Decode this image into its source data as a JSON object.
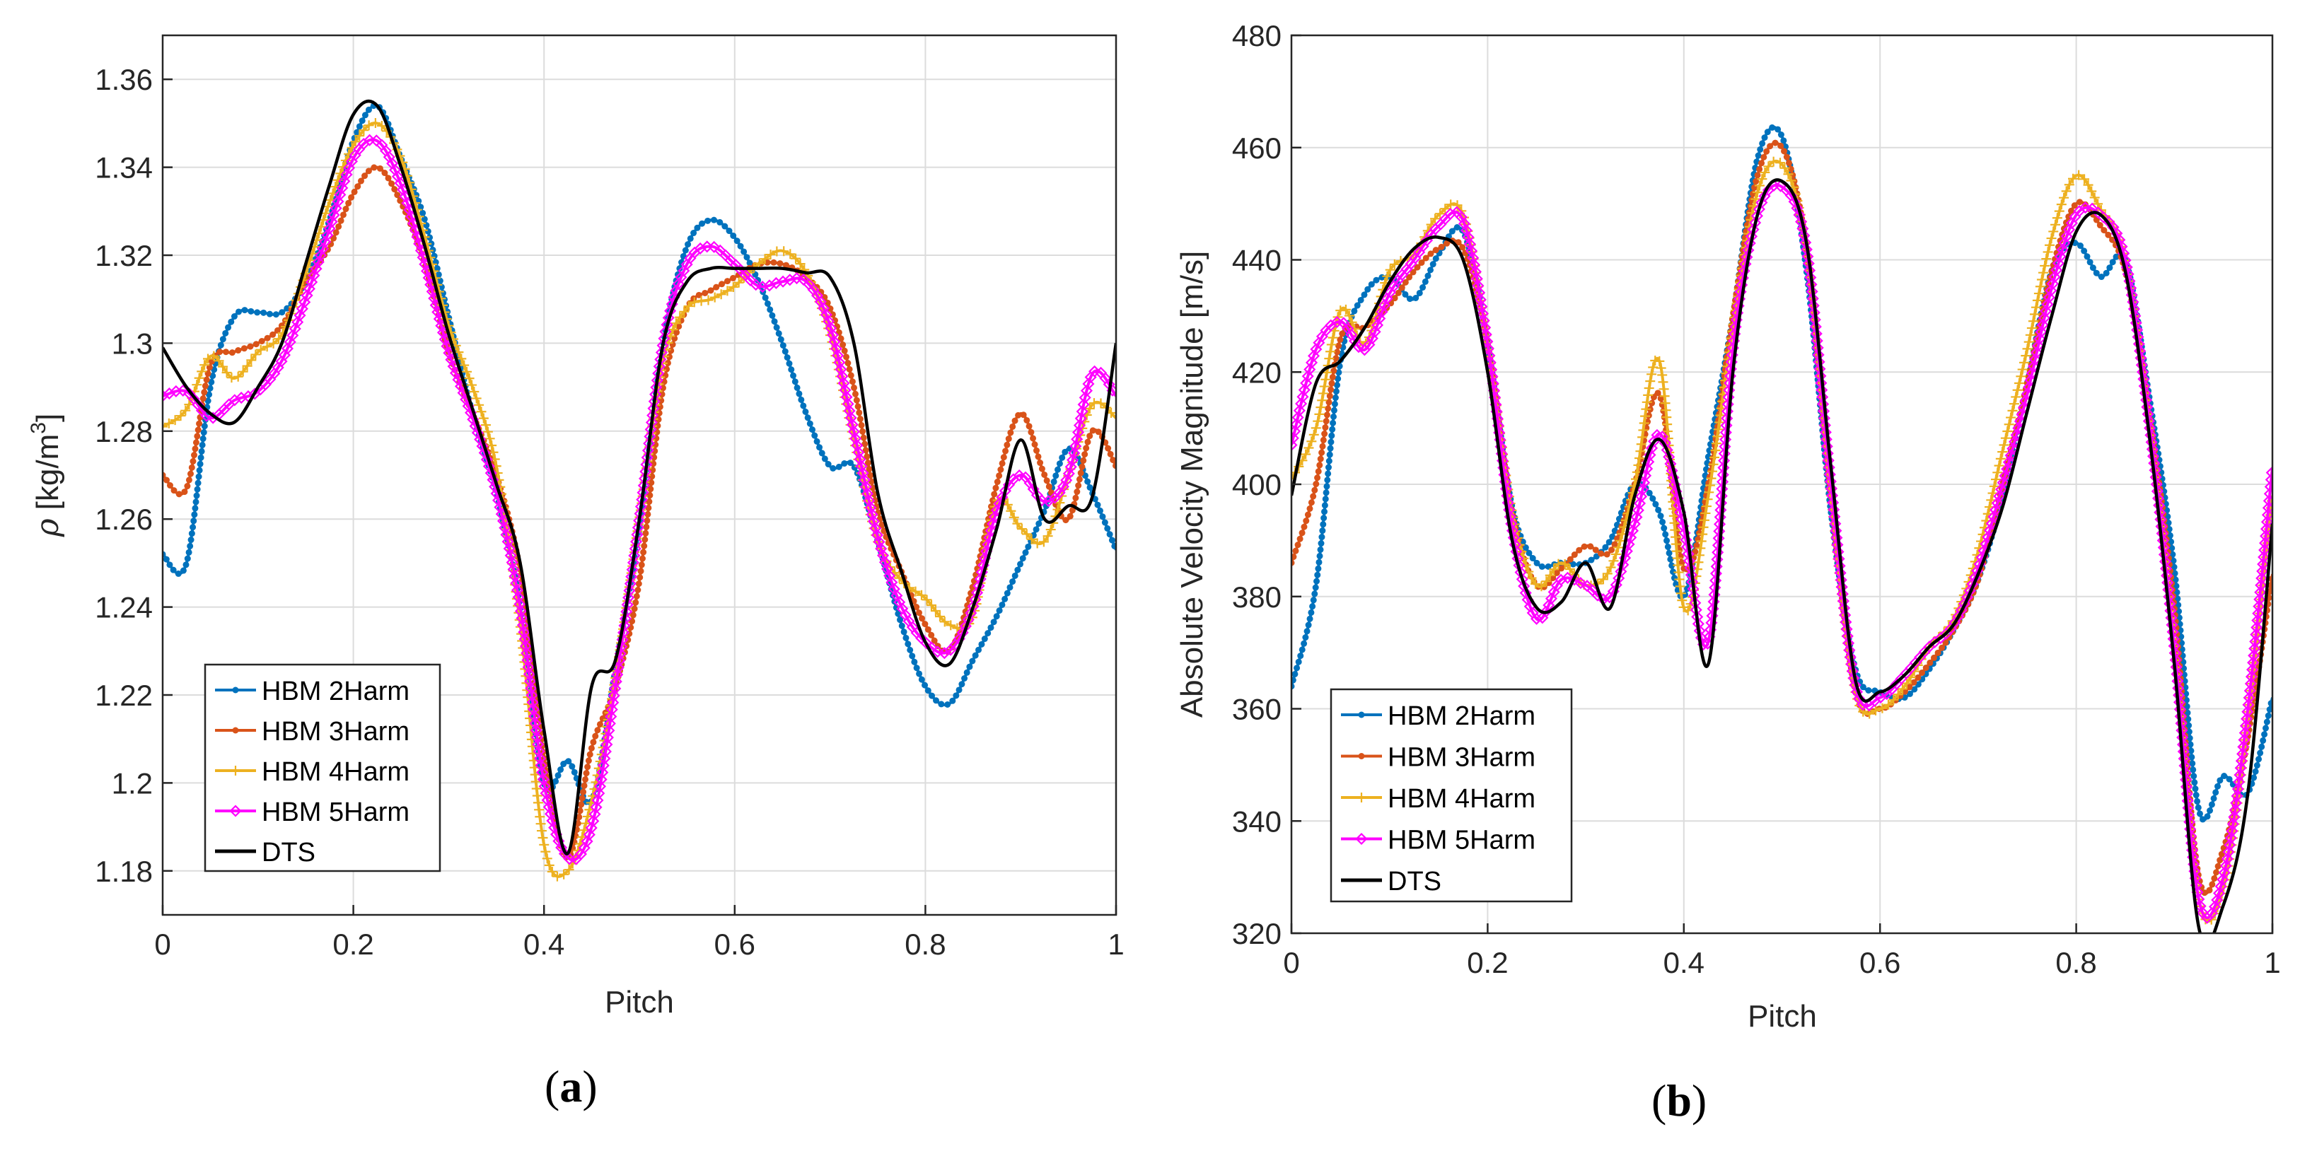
{
  "figure": {
    "caption_a": "a",
    "caption_b": "b"
  },
  "colors": {
    "HBM 2Harm": "#0072BD",
    "HBM 3Harm": "#D95319",
    "HBM 4Harm": "#EDB120",
    "HBM 5Harm": "#FF00FF",
    "DTS": "#000000"
  },
  "chart_data": [
    {
      "type": "line",
      "panel": "a",
      "xlabel": "Pitch",
      "ylabel_symbol": "ρ",
      "ylabel_unit_prefix": "[kg/m",
      "ylabel_unit_exp": "3",
      "ylabel_unit_suffix": "]",
      "xlim": [
        0,
        1
      ],
      "ylim": [
        1.17,
        1.37
      ],
      "xticks": [
        0,
        0.2,
        0.4,
        0.6,
        0.8,
        1
      ],
      "xtick_labels": [
        "0",
        "0.2",
        "0.4",
        "0.6",
        "0.8",
        "1"
      ],
      "yticks": [
        1.18,
        1.2,
        1.22,
        1.24,
        1.26,
        1.28,
        1.3,
        1.32,
        1.34,
        1.36
      ],
      "ytick_labels": [
        "1.18",
        "1.2",
        "1.22",
        "1.24",
        "1.26",
        "1.28",
        "1.3",
        "1.32",
        "1.34",
        "1.36"
      ],
      "grid": true,
      "legend_position": "bottom-left",
      "x": [
        0,
        0.025,
        0.05,
        0.075,
        0.1,
        0.125,
        0.15,
        0.175,
        0.2,
        0.225,
        0.25,
        0.275,
        0.3,
        0.325,
        0.35,
        0.375,
        0.4,
        0.425,
        0.45,
        0.475,
        0.5,
        0.525,
        0.55,
        0.575,
        0.6,
        0.625,
        0.65,
        0.675,
        0.7,
        0.725,
        0.75,
        0.775,
        0.8,
        0.825,
        0.85,
        0.875,
        0.9,
        0.925,
        0.95,
        0.975,
        1
      ],
      "series": [
        {
          "name": "HBM 2Harm",
          "values": [
            1.252,
            1.25,
            1.29,
            1.306,
            1.307,
            1.307,
            1.314,
            1.328,
            1.346,
            1.354,
            1.342,
            1.328,
            1.306,
            1.284,
            1.266,
            1.24,
            1.2,
            1.205,
            1.196,
            1.226,
            1.258,
            1.3,
            1.322,
            1.328,
            1.324,
            1.314,
            1.3,
            1.284,
            1.272,
            1.272,
            1.255,
            1.236,
            1.222,
            1.218,
            1.228,
            1.238,
            1.25,
            1.262,
            1.276,
            1.266,
            1.253
          ]
        },
        {
          "name": "HBM 3Harm",
          "values": [
            1.27,
            1.267,
            1.295,
            1.298,
            1.3,
            1.304,
            1.314,
            1.322,
            1.334,
            1.34,
            1.332,
            1.318,
            1.298,
            1.284,
            1.27,
            1.248,
            1.206,
            1.183,
            1.208,
            1.222,
            1.246,
            1.29,
            1.308,
            1.312,
            1.315,
            1.318,
            1.318,
            1.315,
            1.308,
            1.29,
            1.262,
            1.248,
            1.236,
            1.23,
            1.245,
            1.268,
            1.284,
            1.27,
            1.26,
            1.28,
            1.272
          ]
        },
        {
          "name": "HBM 4Harm",
          "values": [
            1.281,
            1.285,
            1.297,
            1.292,
            1.298,
            1.302,
            1.316,
            1.332,
            1.345,
            1.35,
            1.342,
            1.324,
            1.304,
            1.29,
            1.272,
            1.236,
            1.186,
            1.18,
            1.196,
            1.224,
            1.26,
            1.296,
            1.308,
            1.31,
            1.313,
            1.318,
            1.321,
            1.316,
            1.302,
            1.278,
            1.255,
            1.246,
            1.242,
            1.236,
            1.238,
            1.264,
            1.258,
            1.255,
            1.27,
            1.286,
            1.283
          ]
        },
        {
          "name": "HBM 5Harm",
          "values": [
            1.288,
            1.289,
            1.283,
            1.287,
            1.289,
            1.296,
            1.31,
            1.326,
            1.342,
            1.346,
            1.336,
            1.318,
            1.298,
            1.283,
            1.266,
            1.24,
            1.2,
            1.183,
            1.19,
            1.222,
            1.26,
            1.3,
            1.318,
            1.322,
            1.318,
            1.313,
            1.314,
            1.314,
            1.304,
            1.28,
            1.256,
            1.24,
            1.232,
            1.23,
            1.24,
            1.262,
            1.27,
            1.264,
            1.27,
            1.293,
            1.288
          ]
        },
        {
          "name": "DTS",
          "values": [
            1.299,
            1.29,
            1.284,
            1.282,
            1.29,
            1.3,
            1.318,
            1.336,
            1.352,
            1.354,
            1.34,
            1.322,
            1.302,
            1.285,
            1.268,
            1.25,
            1.212,
            1.184,
            1.222,
            1.228,
            1.26,
            1.3,
            1.314,
            1.317,
            1.317,
            1.317,
            1.317,
            1.316,
            1.315,
            1.3,
            1.266,
            1.248,
            1.232,
            1.227,
            1.24,
            1.258,
            1.278,
            1.26,
            1.263,
            1.265,
            1.3
          ]
        }
      ]
    },
    {
      "type": "line",
      "panel": "b",
      "xlabel": "Pitch",
      "ylabel": "Absolute Velocity Magnitude [m/s]",
      "xlim": [
        0,
        1
      ],
      "ylim": [
        320,
        480
      ],
      "xticks": [
        0,
        0.2,
        0.4,
        0.6,
        0.8,
        1
      ],
      "xtick_labels": [
        "0",
        "0.2",
        "0.4",
        "0.6",
        "0.8",
        "1"
      ],
      "yticks": [
        320,
        340,
        360,
        380,
        400,
        420,
        440,
        460,
        480
      ],
      "ytick_labels": [
        "320",
        "340",
        "360",
        "380",
        "400",
        "420",
        "440",
        "460",
        "480"
      ],
      "grid": true,
      "legend_position": "bottom-left",
      "x": [
        0,
        0.025,
        0.05,
        0.075,
        0.1,
        0.125,
        0.15,
        0.175,
        0.2,
        0.225,
        0.25,
        0.275,
        0.3,
        0.325,
        0.35,
        0.375,
        0.4,
        0.425,
        0.45,
        0.475,
        0.5,
        0.525,
        0.55,
        0.575,
        0.6,
        0.625,
        0.65,
        0.675,
        0.7,
        0.725,
        0.75,
        0.775,
        0.8,
        0.825,
        0.85,
        0.875,
        0.9,
        0.925,
        0.95,
        0.975,
        1
      ],
      "series": [
        {
          "name": "HBM 2Harm",
          "values": [
            364,
            382,
            422,
            434,
            437,
            433,
            441,
            445,
            425,
            396,
            386,
            386,
            386,
            390,
            400,
            395,
            380,
            405,
            430,
            458,
            462,
            438,
            395,
            367,
            363,
            362,
            367,
            374,
            383,
            398,
            418,
            438,
            443,
            437,
            440,
            415,
            385,
            342,
            348,
            345,
            362
          ]
        },
        {
          "name": "HBM 3Harm",
          "values": [
            386,
            400,
            426,
            428,
            432,
            438,
            442,
            442,
            425,
            395,
            382,
            385,
            389,
            388,
            400,
            416,
            385,
            400,
            430,
            455,
            460,
            442,
            398,
            363,
            360,
            363,
            368,
            374,
            383,
            400,
            418,
            438,
            450,
            446,
            438,
            412,
            378,
            330,
            335,
            355,
            384
          ]
        },
        {
          "name": "HBM 4Harm",
          "values": [
            401,
            410,
            431,
            425,
            438,
            441,
            448,
            448,
            425,
            395,
            382,
            386,
            382,
            385,
            400,
            422,
            378,
            398,
            428,
            452,
            457,
            442,
            398,
            363,
            360,
            364,
            371,
            376,
            388,
            406,
            424,
            444,
            455,
            449,
            440,
            410,
            370,
            326,
            328,
            358,
            398
          ]
        },
        {
          "name": "HBM 5Harm",
          "values": [
            407,
            424,
            429,
            424,
            434,
            440,
            446,
            447,
            425,
            392,
            376,
            383,
            382,
            380,
            393,
            409,
            392,
            372,
            424,
            448,
            453,
            442,
            400,
            364,
            362,
            366,
            371,
            375,
            385,
            400,
            416,
            435,
            448,
            448,
            440,
            410,
            371,
            326,
            330,
            360,
            403
          ]
        },
        {
          "name": "DTS",
          "values": [
            398,
            418,
            422,
            428,
            436,
            442,
            444,
            440,
            420,
            390,
            378,
            379,
            386,
            378,
            398,
            408,
            395,
            368,
            420,
            448,
            454,
            443,
            403,
            365,
            363,
            366,
            371,
            375,
            384,
            396,
            413,
            430,
            445,
            448,
            438,
            408,
            368,
            321,
            325,
            345,
            393
          ]
        }
      ]
    }
  ]
}
